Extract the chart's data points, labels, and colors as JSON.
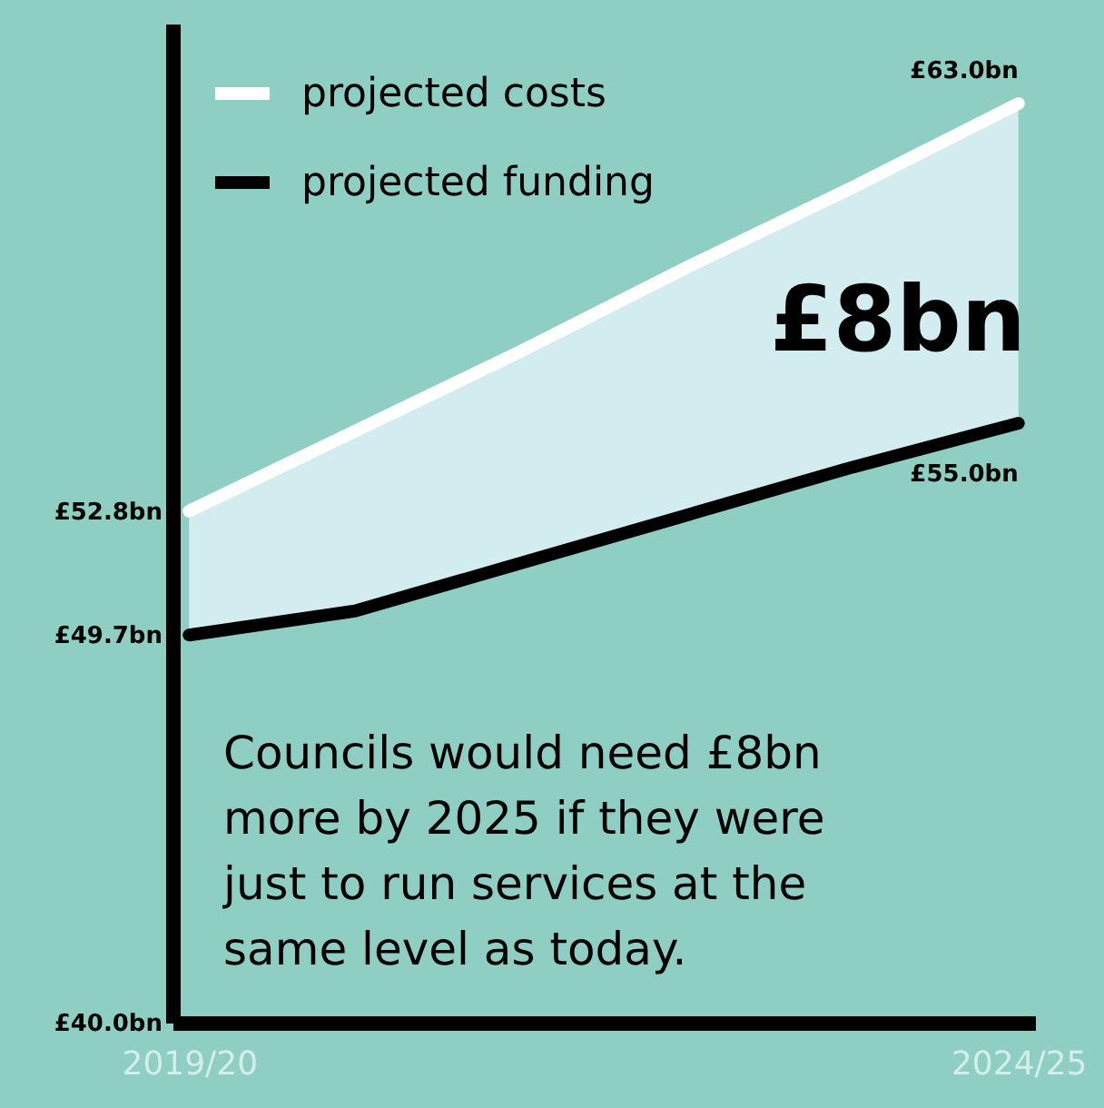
{
  "chart_data": {
    "type": "line",
    "categories": [
      "2019/20",
      null,
      null,
      null,
      null,
      "2024/25"
    ],
    "series": [
      {
        "name": "projected costs",
        "color": "#ffffff",
        "values": [
          52.8,
          54.8,
          56.8,
          58.9,
          60.9,
          63.0
        ],
        "lower": [
          49.7,
          50.3,
          51.5,
          52.7,
          53.9,
          55.0
        ],
        "upper": [
          52.8,
          54.8,
          56.8,
          58.9,
          60.9,
          63.0
        ]
      },
      {
        "name": "projected funding",
        "color": "#000000",
        "values": [
          49.7,
          50.3,
          51.5,
          52.7,
          53.9,
          55.0
        ]
      }
    ],
    "ylim": [
      40,
      65
    ],
    "yticks": [
      {
        "value": 40,
        "label": "£40.0bn"
      },
      {
        "value": 49.7,
        "label": "£49.7bn"
      },
      {
        "value": 52.8,
        "label": "£52.8bn"
      }
    ],
    "grid": false,
    "legend": "top left",
    "marker": "none",
    "line_style": "solid",
    "annotations": [
      {
        "text": "£63.0bn",
        "x": "2024/25",
        "y": 63.0
      },
      {
        "text": "£55.0bn",
        "x": "2024/25",
        "y": 55.0
      },
      "£8bn",
      "Councils would need £8bn more by 2025 if they were just to run services at the same level as today."
    ]
  }
}
